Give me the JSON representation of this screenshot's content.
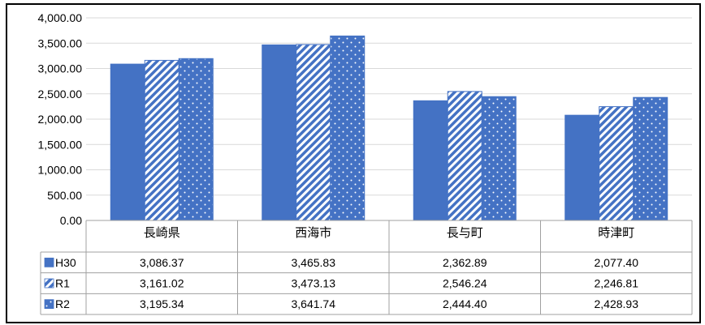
{
  "chart_data": {
    "type": "bar",
    "categories": [
      "長崎県",
      "西海市",
      "長与町",
      "時津町"
    ],
    "series": [
      {
        "name": "H30",
        "values": [
          3086.37,
          3465.83,
          2362.89,
          2077.4
        ],
        "color": "#4472C4",
        "pattern": "solid"
      },
      {
        "name": "R1",
        "values": [
          3161.02,
          3473.13,
          2546.24,
          2246.81
        ],
        "color": "#4472C4",
        "pattern": "diagonal-stripes"
      },
      {
        "name": "R2",
        "values": [
          3195.34,
          3641.74,
          2444.4,
          2428.93
        ],
        "color": "#4472C4",
        "pattern": "dots"
      }
    ],
    "ylim": [
      0,
      4000
    ],
    "y_ticks": [
      0,
      500,
      1000,
      1500,
      2000,
      2500,
      3000,
      3500,
      4000
    ],
    "grid": true,
    "legend": "data-table",
    "data_table": true
  }
}
